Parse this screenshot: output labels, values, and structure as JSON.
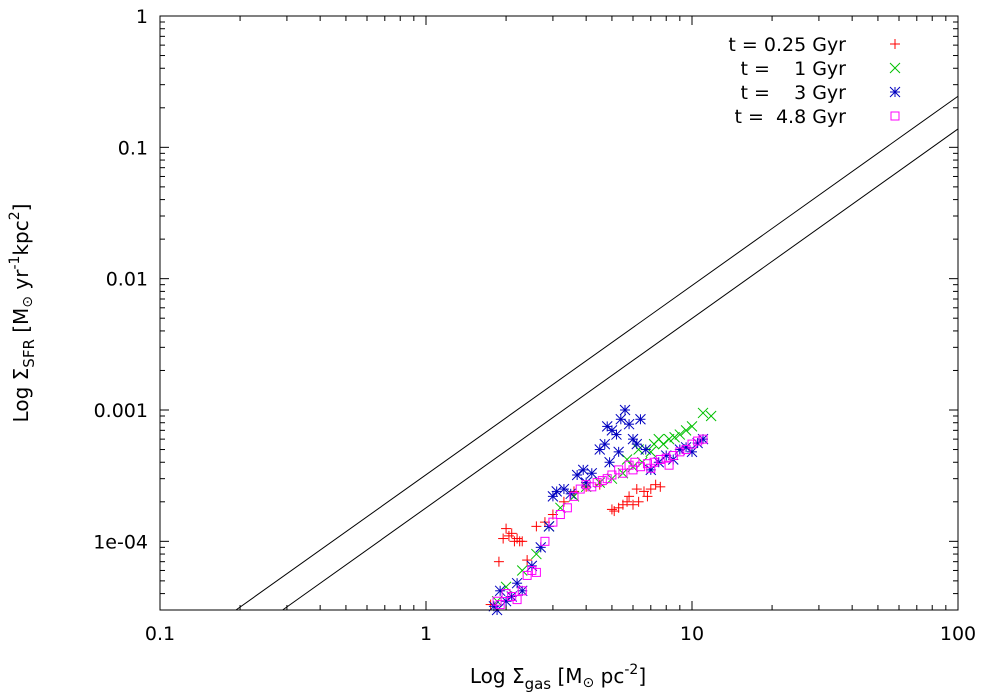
{
  "chart_data": {
    "type": "scatter",
    "title": "",
    "xscale": "log",
    "yscale": "log",
    "xlim": [
      0.1,
      100
    ],
    "ylim": [
      3e-05,
      1
    ],
    "x_tick_labels": [
      "0.1",
      "1",
      "10",
      "100"
    ],
    "x_tick_values": [
      0.1,
      1,
      10,
      100
    ],
    "y_tick_labels": [
      "1e-04",
      "0.001",
      "0.01",
      "0.1",
      "1"
    ],
    "y_tick_values": [
      0.0001,
      0.001,
      0.01,
      0.1,
      1
    ],
    "xlabel": {
      "prefix": "Log ",
      "symbol": "Σ",
      "subscript": "gas",
      "units_open": " [M",
      "sun": "⊙",
      "units_mid": "  pc",
      "exp": "-2",
      "units_close": "]"
    },
    "ylabel": {
      "prefix": "Log ",
      "symbol": "Σ",
      "subscript": "SFR",
      "units_open": " [M",
      "sun": "⊙",
      "units_mid": "  yr",
      "exp1": "-1",
      "units_mid2": "kpc",
      "exp2": "2",
      "units_close": "]"
    },
    "legend_position": "top-right",
    "reference_lines": [
      {
        "name": "relation-upper",
        "points": [
          [
            0.193,
            3e-05
          ],
          [
            100,
            0.245
          ]
        ]
      },
      {
        "name": "relation-lower",
        "points": [
          [
            0.289,
            3e-05
          ],
          [
            100,
            0.138
          ]
        ]
      }
    ],
    "series": [
      {
        "name": "t = 0.25 Gyr",
        "marker": "plus",
        "color": "#ff0000",
        "points": [
          [
            1.75,
            3.3e-05
          ],
          [
            1.88,
            7e-05
          ],
          [
            1.95,
            0.000105
          ],
          [
            2.0,
            0.000125
          ],
          [
            2.05,
            0.00011
          ],
          [
            2.1,
            0.000115
          ],
          [
            2.15,
            0.0001
          ],
          [
            2.2,
            0.000105
          ],
          [
            2.25,
            0.0001
          ],
          [
            2.3,
            0.0001
          ],
          [
            2.4,
            7.2e-05
          ],
          [
            2.6,
            0.00013
          ],
          [
            2.8,
            0.00014
          ],
          [
            3.0,
            0.00016
          ],
          [
            3.3,
            0.0002
          ],
          [
            3.6,
            0.00024
          ],
          [
            4.0,
            0.00026
          ],
          [
            4.5,
            0.00027
          ],
          [
            5.0,
            0.000175
          ],
          [
            5.1,
            0.00017
          ],
          [
            5.3,
            0.00018
          ],
          [
            5.5,
            0.00019
          ],
          [
            5.7,
            0.0002
          ],
          [
            6.0,
            0.00019
          ],
          [
            6.3,
            0.0002
          ],
          [
            6.6,
            0.00024
          ],
          [
            6.8,
            0.00022
          ],
          [
            7.0,
            0.00025
          ],
          [
            7.3,
            0.00027
          ],
          [
            7.6,
            0.00026
          ],
          [
            6.2,
            0.00025
          ],
          [
            5.8,
            0.00022
          ]
        ]
      },
      {
        "name": "t =    1 Gyr",
        "marker": "cross",
        "color": "#00c000",
        "points": [
          [
            1.85,
            3.5e-05
          ],
          [
            2.0,
            4.5e-05
          ],
          [
            2.3,
            6e-05
          ],
          [
            2.6,
            8e-05
          ],
          [
            2.9,
            0.00013
          ],
          [
            3.2,
            0.00018
          ],
          [
            3.6,
            0.00022
          ],
          [
            4.0,
            0.00026
          ],
          [
            4.5,
            0.00028
          ],
          [
            5.0,
            0.0003
          ],
          [
            5.5,
            0.00033
          ],
          [
            6.0,
            0.00037
          ],
          [
            6.5,
            0.0004
          ],
          [
            7.0,
            0.00048
          ],
          [
            7.2,
            0.00055
          ],
          [
            7.5,
            0.0006
          ],
          [
            7.8,
            0.00055
          ],
          [
            8.2,
            0.0006
          ],
          [
            8.6,
            0.00062
          ],
          [
            9.0,
            0.00065
          ],
          [
            9.5,
            0.0007
          ],
          [
            10.0,
            0.00075
          ],
          [
            11.0,
            0.00095
          ],
          [
            11.8,
            0.0009
          ],
          [
            6.3,
            0.0005
          ],
          [
            5.7,
            0.00042
          ]
        ]
      },
      {
        "name": "t =    3 Gyr",
        "marker": "star",
        "color": "#0000c0",
        "points": [
          [
            1.8,
            3.2e-05
          ],
          [
            1.85,
            3e-05
          ],
          [
            1.9,
            4.2e-05
          ],
          [
            2.0,
            3.5e-05
          ],
          [
            2.1,
            3.8e-05
          ],
          [
            2.2,
            4.8e-05
          ],
          [
            2.3,
            4.2e-05
          ],
          [
            2.5,
            6.5e-05
          ],
          [
            2.7,
            9e-05
          ],
          [
            2.9,
            0.00013
          ],
          [
            3.0,
            0.00022
          ],
          [
            3.1,
            0.00024
          ],
          [
            3.3,
            0.00025
          ],
          [
            3.5,
            0.00023
          ],
          [
            3.7,
            0.00032
          ],
          [
            3.9,
            0.00035
          ],
          [
            4.0,
            0.00028
          ],
          [
            4.2,
            0.00033
          ],
          [
            4.5,
            0.0005
          ],
          [
            4.7,
            0.00055
          ],
          [
            4.8,
            0.00075
          ],
          [
            5.0,
            0.0007
          ],
          [
            5.2,
            0.00065
          ],
          [
            5.4,
            0.00085
          ],
          [
            5.6,
            0.001
          ],
          [
            5.8,
            0.00078
          ],
          [
            6.0,
            0.0006
          ],
          [
            6.2,
            0.00055
          ],
          [
            6.4,
            0.00085
          ],
          [
            6.7,
            0.0005
          ],
          [
            7.0,
            0.00035
          ],
          [
            7.5,
            0.0004
          ],
          [
            8.0,
            0.00045
          ],
          [
            8.5,
            0.00042
          ],
          [
            9.0,
            0.0005
          ],
          [
            9.5,
            0.00052
          ],
          [
            10.0,
            0.00048
          ],
          [
            10.5,
            0.00056
          ],
          [
            11.0,
            0.0006
          ],
          [
            5.3,
            0.00048
          ],
          [
            4.9,
            0.0004
          ]
        ]
      },
      {
        "name": "t =  4.8 Gyr",
        "marker": "square",
        "color": "#ff00ff",
        "points": [
          [
            1.85,
            3.5e-05
          ],
          [
            1.9,
            3.3e-05
          ],
          [
            2.0,
            4e-05
          ],
          [
            2.1,
            3.8e-05
          ],
          [
            2.2,
            3.6e-05
          ],
          [
            2.3,
            4.2e-05
          ],
          [
            2.4,
            5.5e-05
          ],
          [
            2.5,
            6e-05
          ],
          [
            2.6,
            5.8e-05
          ],
          [
            2.8,
            0.0001
          ],
          [
            3.0,
            0.00014
          ],
          [
            3.2,
            0.00016
          ],
          [
            3.4,
            0.00018
          ],
          [
            3.6,
            0.00022
          ],
          [
            3.8,
            0.00025
          ],
          [
            4.0,
            0.00027
          ],
          [
            4.2,
            0.00026
          ],
          [
            4.4,
            0.00028
          ],
          [
            4.6,
            0.00029
          ],
          [
            4.8,
            0.0003
          ],
          [
            5.0,
            0.00032
          ],
          [
            5.3,
            0.00035
          ],
          [
            5.5,
            0.00033
          ],
          [
            5.8,
            0.00038
          ],
          [
            6.1,
            0.0004
          ],
          [
            6.4,
            0.00037
          ],
          [
            6.8,
            0.00039
          ],
          [
            7.2,
            0.0004
          ],
          [
            7.6,
            0.00042
          ],
          [
            8.0,
            0.00043
          ],
          [
            8.5,
            0.00045
          ],
          [
            9.0,
            0.00048
          ],
          [
            9.5,
            0.0005
          ],
          [
            10.0,
            0.00055
          ],
          [
            10.5,
            0.00058
          ],
          [
            11.0,
            0.0006
          ],
          [
            6.0,
            0.00035
          ],
          [
            7.0,
            0.00036
          ],
          [
            8.2,
            0.00038
          ]
        ]
      }
    ]
  }
}
